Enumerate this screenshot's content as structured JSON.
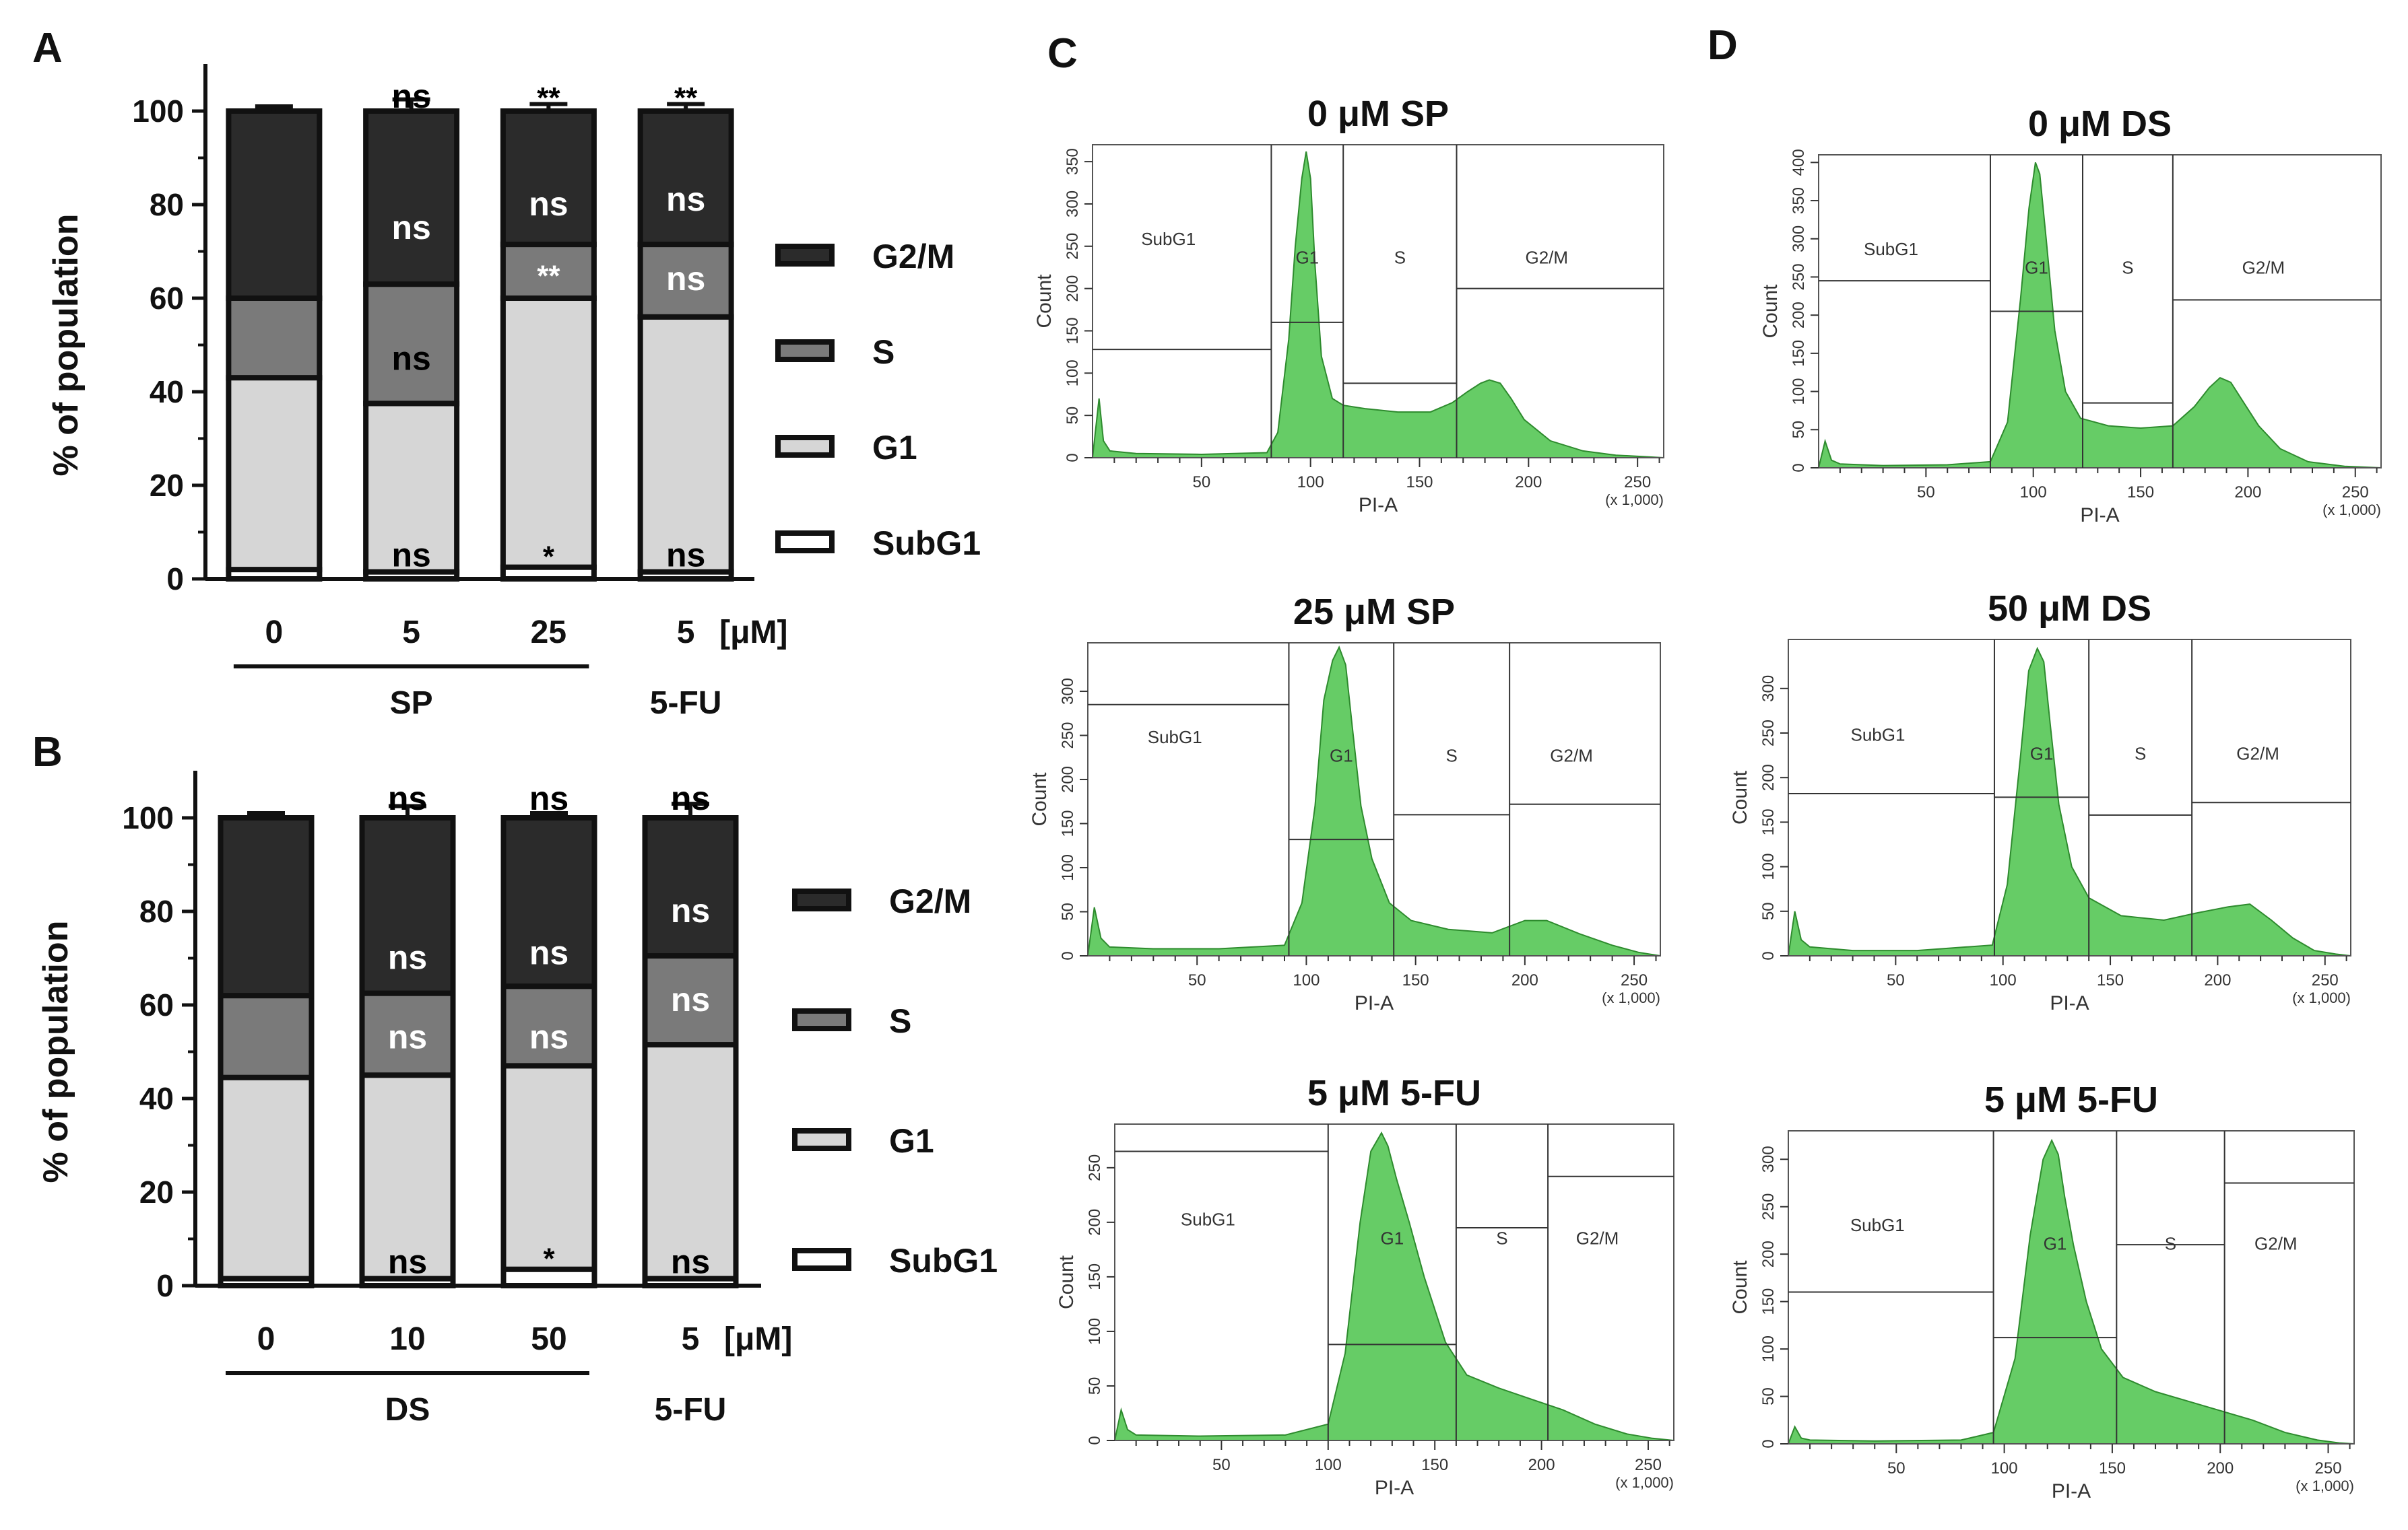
{
  "panels": {
    "a": "A",
    "b": "B",
    "c": "C",
    "d": "D"
  },
  "chart_data": [
    {
      "id": "A",
      "type": "bar",
      "stacked": true,
      "ylabel": "% of population",
      "ylim": [
        0,
        100
      ],
      "yticks": [
        "0",
        "20",
        "40",
        "60",
        "80",
        "100"
      ],
      "categories": [
        "0",
        "5",
        "25",
        "5"
      ],
      "unit_label": "[μM]",
      "groups": [
        {
          "label": "SP",
          "from": 0,
          "to": 2
        },
        {
          "label": "5-FU",
          "from": 3,
          "to": 3
        }
      ],
      "series": [
        {
          "name": "SubG1",
          "values": [
            2,
            1.5,
            2.5,
            1.5
          ],
          "errors": [
            1,
            1,
            1.5,
            1
          ],
          "color": "#ffffff"
        },
        {
          "name": "G1",
          "values": [
            41,
            36,
            57.5,
            54.5
          ],
          "errors": [
            4,
            4,
            2,
            2
          ],
          "color": "#d6d6d6"
        },
        {
          "name": "S",
          "values": [
            17,
            25.5,
            11.5,
            15.5
          ],
          "errors": [
            3,
            6,
            2.5,
            2.5
          ],
          "color": "#7a7a7a"
        },
        {
          "name": "G2/M",
          "values": [
            40,
            37,
            28.5,
            28.5
          ],
          "errors": [
            1,
            2.5,
            1.5,
            1.5
          ],
          "color": "#2b2b2b"
        }
      ],
      "annotations": [
        {
          "bar": 1,
          "y": 103,
          "text": "ns",
          "color": "#000000"
        },
        {
          "bar": 2,
          "y": 103,
          "text": "**",
          "color": "#000000"
        },
        {
          "bar": 3,
          "y": 103,
          "text": "**",
          "color": "#000000"
        },
        {
          "bar": 1,
          "y": 75,
          "text": "ns",
          "color": "#ffffff"
        },
        {
          "bar": 2,
          "y": 80,
          "text": "ns",
          "color": "#ffffff"
        },
        {
          "bar": 3,
          "y": 81,
          "text": "ns",
          "color": "#ffffff"
        },
        {
          "bar": 2,
          "y": 65,
          "text": "**",
          "color": "#ffffff"
        },
        {
          "bar": 3,
          "y": 64,
          "text": "ns",
          "color": "#ffffff"
        },
        {
          "bar": 1,
          "y": 47,
          "text": "ns",
          "color": "#000000"
        },
        {
          "bar": 1,
          "y": 5,
          "text": "ns",
          "color": "#000000"
        },
        {
          "bar": 2,
          "y": 5,
          "text": "*",
          "color": "#000000"
        },
        {
          "bar": 3,
          "y": 5,
          "text": "ns",
          "color": "#000000"
        }
      ]
    },
    {
      "id": "B",
      "type": "bar",
      "stacked": true,
      "ylabel": "% of population",
      "ylim": [
        0,
        100
      ],
      "yticks": [
        "0",
        "20",
        "40",
        "60",
        "80",
        "100"
      ],
      "categories": [
        "0",
        "10",
        "50",
        "5"
      ],
      "unit_label": "[μM]",
      "groups": [
        {
          "label": "DS",
          "from": 0,
          "to": 2
        },
        {
          "label": "5-FU",
          "from": 3,
          "to": 3
        }
      ],
      "series": [
        {
          "name": "SubG1",
          "values": [
            1.5,
            1.5,
            3.5,
            1.5
          ],
          "errors": [
            0.5,
            0.5,
            1,
            0.5
          ],
          "color": "#ffffff"
        },
        {
          "name": "G1",
          "values": [
            43,
            43.5,
            43.5,
            50
          ],
          "errors": [
            4,
            4,
            2,
            6
          ],
          "color": "#d6d6d6"
        },
        {
          "name": "S",
          "values": [
            17.5,
            17.5,
            17,
            19
          ],
          "errors": [
            3.5,
            2,
            2,
            3
          ],
          "color": "#7a7a7a"
        },
        {
          "name": "G2/M",
          "values": [
            38,
            37.5,
            36,
            29.5
          ],
          "errors": [
            1,
            2.5,
            1,
            3
          ],
          "color": "#2b2b2b"
        }
      ],
      "annotations": [
        {
          "bar": 1,
          "y": 104,
          "text": "ns",
          "color": "#000000"
        },
        {
          "bar": 2,
          "y": 104,
          "text": "ns",
          "color": "#000000"
        },
        {
          "bar": 3,
          "y": 104,
          "text": "ns",
          "color": "#000000"
        },
        {
          "bar": 1,
          "y": 70,
          "text": "ns",
          "color": "#ffffff"
        },
        {
          "bar": 2,
          "y": 71,
          "text": "ns",
          "color": "#ffffff"
        },
        {
          "bar": 3,
          "y": 80,
          "text": "ns",
          "color": "#ffffff"
        },
        {
          "bar": 1,
          "y": 53,
          "text": "ns",
          "color": "#ffffff"
        },
        {
          "bar": 2,
          "y": 53,
          "text": "ns",
          "color": "#ffffff"
        },
        {
          "bar": 3,
          "y": 61,
          "text": "ns",
          "color": "#ffffff"
        },
        {
          "bar": 1,
          "y": 5,
          "text": "ns",
          "color": "#000000"
        },
        {
          "bar": 2,
          "y": 6,
          "text": "*",
          "color": "#000000"
        },
        {
          "bar": 3,
          "y": 5,
          "text": "ns",
          "color": "#000000"
        }
      ]
    },
    {
      "id": "C-0",
      "type": "area",
      "title": "0 μM SP",
      "xlabel": "PI-A",
      "ylabel": "Count",
      "xunit": "(x 1,000)",
      "xlim": [
        0,
        262
      ],
      "ylim": [
        0,
        370
      ],
      "xticks": [
        "50",
        "100",
        "150",
        "200",
        "250"
      ],
      "yticks": [
        "0",
        "50",
        "100",
        "150",
        "200",
        "250",
        "300",
        "350"
      ],
      "gates": [
        {
          "label": "SubG1",
          "from": 0,
          "to": 82,
          "level": 128
        },
        {
          "label": "G1",
          "from": 82,
          "to": 115,
          "level": 160
        },
        {
          "label": "S",
          "from": 115,
          "to": 167,
          "level": 88
        },
        {
          "label": "G2/M",
          "from": 167,
          "to": 262,
          "level": 200
        }
      ],
      "histogram": {
        "x": [
          0,
          3,
          5,
          8,
          20,
          50,
          80,
          85,
          90,
          93,
          96,
          98,
          100,
          102,
          105,
          110,
          115,
          125,
          140,
          155,
          165,
          172,
          178,
          182,
          187,
          192,
          198,
          210,
          225,
          240,
          255,
          262
        ],
        "y": [
          0,
          70,
          20,
          8,
          5,
          4,
          6,
          30,
          140,
          250,
          330,
          362,
          330,
          230,
          120,
          70,
          62,
          58,
          54,
          54,
          65,
          78,
          88,
          92,
          88,
          70,
          45,
          20,
          8,
          3,
          1,
          0
        ]
      }
    },
    {
      "id": "C-25",
      "type": "area",
      "title": "25 μM SP",
      "xlabel": "PI-A",
      "ylabel": "Count",
      "xunit": "(x 1,000)",
      "xlim": [
        0,
        262
      ],
      "ylim": [
        0,
        355
      ],
      "xticks": [
        "50",
        "100",
        "150",
        "200",
        "250"
      ],
      "yticks": [
        "0",
        "50",
        "100",
        "150",
        "200",
        "250",
        "300"
      ],
      "gates": [
        {
          "label": "SubG1",
          "from": 0,
          "to": 92,
          "level": 285
        },
        {
          "label": "G1",
          "from": 92,
          "to": 140,
          "level": 132
        },
        {
          "label": "S",
          "from": 140,
          "to": 193,
          "level": 160
        },
        {
          "label": "G2/M",
          "from": 193,
          "to": 262,
          "level": 172
        }
      ],
      "histogram": {
        "x": [
          0,
          3,
          6,
          10,
          30,
          60,
          90,
          98,
          104,
          108,
          112,
          115,
          118,
          121,
          125,
          130,
          138,
          148,
          165,
          185,
          200,
          210,
          225,
          240,
          252,
          262
        ],
        "y": [
          0,
          55,
          20,
          10,
          8,
          8,
          12,
          60,
          170,
          290,
          335,
          350,
          330,
          260,
          170,
          110,
          60,
          40,
          30,
          26,
          40,
          40,
          25,
          12,
          4,
          0
        ]
      }
    },
    {
      "id": "C-5FU",
      "type": "area",
      "title": "5 μM 5-FU",
      "xlabel": "PI-A",
      "ylabel": "Count",
      "xunit": "(x 1,000)",
      "xlim": [
        0,
        262
      ],
      "ylim": [
        0,
        290
      ],
      "xticks": [
        "50",
        "100",
        "150",
        "200",
        "250"
      ],
      "yticks": [
        "0",
        "50",
        "100",
        "150",
        "200",
        "250"
      ],
      "gates": [
        {
          "label": "SubG1",
          "from": 0,
          "to": 100,
          "level": 265
        },
        {
          "label": "G1",
          "from": 100,
          "to": 160,
          "level": 88
        },
        {
          "label": "S",
          "from": 160,
          "to": 203,
          "level": 195
        },
        {
          "label": "G2/M",
          "from": 203,
          "to": 262,
          "level": 242
        }
      ],
      "histogram": {
        "x": [
          0,
          3,
          6,
          10,
          40,
          80,
          100,
          108,
          115,
          120,
          125,
          128,
          132,
          138,
          145,
          155,
          165,
          180,
          195,
          210,
          225,
          240,
          252,
          262
        ],
        "y": [
          0,
          28,
          10,
          5,
          4,
          5,
          15,
          80,
          200,
          265,
          282,
          270,
          240,
          200,
          150,
          90,
          60,
          48,
          38,
          28,
          15,
          6,
          2,
          0
        ]
      }
    },
    {
      "id": "D-0",
      "type": "area",
      "title": "0 μM DS",
      "xlabel": "PI-A",
      "ylabel": "Count",
      "xunit": "(x 1,000)",
      "xlim": [
        0,
        262
      ],
      "ylim": [
        0,
        410
      ],
      "xticks": [
        "50",
        "100",
        "150",
        "200",
        "250"
      ],
      "yticks": [
        "0",
        "50",
        "100",
        "150",
        "200",
        "250",
        "300",
        "350",
        "400"
      ],
      "gates": [
        {
          "label": "SubG1",
          "from": 0,
          "to": 80,
          "level": 245
        },
        {
          "label": "G1",
          "from": 80,
          "to": 123,
          "level": 205
        },
        {
          "label": "S",
          "from": 123,
          "to": 165,
          "level": 85
        },
        {
          "label": "G2/M",
          "from": 165,
          "to": 262,
          "level": 220
        }
      ],
      "histogram": {
        "x": [
          0,
          3,
          6,
          10,
          30,
          60,
          80,
          88,
          94,
          98,
          101,
          103,
          106,
          110,
          115,
          122,
          135,
          150,
          165,
          175,
          182,
          187,
          192,
          197,
          205,
          215,
          228,
          245,
          262
        ],
        "y": [
          0,
          35,
          10,
          5,
          3,
          4,
          8,
          60,
          220,
          340,
          400,
          385,
          300,
          180,
          100,
          65,
          55,
          52,
          55,
          80,
          105,
          118,
          112,
          90,
          55,
          25,
          8,
          2,
          0
        ]
      }
    },
    {
      "id": "D-50",
      "type": "area",
      "title": "50 μM DS",
      "xlabel": "PI-A",
      "ylabel": "Count",
      "xunit": "(x 1,000)",
      "xlim": [
        0,
        262
      ],
      "ylim": [
        0,
        355
      ],
      "xticks": [
        "50",
        "100",
        "150",
        "200",
        "250"
      ],
      "yticks": [
        "0",
        "50",
        "100",
        "150",
        "200",
        "250",
        "300"
      ],
      "gates": [
        {
          "label": "SubG1",
          "from": 0,
          "to": 96,
          "level": 182
        },
        {
          "label": "G1",
          "from": 96,
          "to": 140,
          "level": 178
        },
        {
          "label": "S",
          "from": 140,
          "to": 188,
          "level": 158
        },
        {
          "label": "G2/M",
          "from": 188,
          "to": 262,
          "level": 172
        }
      ],
      "histogram": {
        "x": [
          0,
          3,
          6,
          10,
          30,
          60,
          95,
          102,
          108,
          112,
          116,
          119,
          122,
          126,
          132,
          140,
          155,
          175,
          190,
          205,
          215,
          225,
          235,
          245,
          255,
          262
        ],
        "y": [
          0,
          50,
          18,
          10,
          6,
          6,
          12,
          80,
          220,
          320,
          345,
          330,
          260,
          170,
          100,
          65,
          45,
          40,
          48,
          55,
          58,
          40,
          20,
          6,
          2,
          0
        ]
      }
    },
    {
      "id": "D-5FU",
      "type": "area",
      "title": "5 μM 5-FU",
      "xlabel": "PI-A",
      "ylabel": "Count",
      "xunit": "(x 1,000)",
      "xlim": [
        0,
        262
      ],
      "ylim": [
        0,
        330
      ],
      "xticks": [
        "50",
        "100",
        "150",
        "200",
        "250"
      ],
      "yticks": [
        "0",
        "50",
        "100",
        "150",
        "200",
        "250",
        "300"
      ],
      "gates": [
        {
          "label": "SubG1",
          "from": 0,
          "to": 95,
          "level": 160
        },
        {
          "label": "G1",
          "from": 95,
          "to": 152,
          "level": 112
        },
        {
          "label": "S",
          "from": 152,
          "to": 202,
          "level": 210
        },
        {
          "label": "G2/M",
          "from": 202,
          "to": 262,
          "level": 275
        }
      ],
      "histogram": {
        "x": [
          0,
          3,
          6,
          10,
          40,
          80,
          95,
          105,
          112,
          118,
          122,
          125,
          128,
          132,
          138,
          145,
          155,
          170,
          185,
          200,
          215,
          230,
          245,
          255,
          262
        ],
        "y": [
          0,
          18,
          6,
          4,
          3,
          4,
          12,
          90,
          220,
          300,
          320,
          305,
          260,
          210,
          150,
          100,
          70,
          55,
          45,
          35,
          25,
          12,
          4,
          1,
          0
        ]
      }
    }
  ]
}
